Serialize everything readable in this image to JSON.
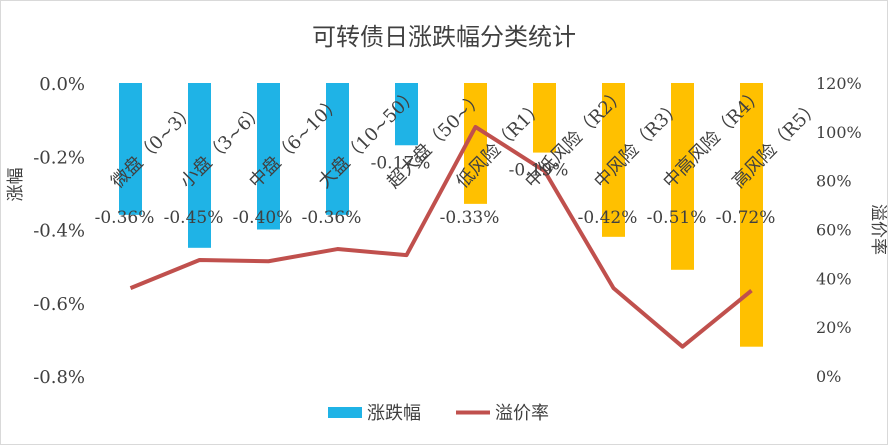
{
  "chart_data": {
    "type": "bar",
    "title": "可转债日涨跌幅分类统计",
    "ylabel": "涨幅",
    "y2label": "溢价率",
    "ylim": [
      -0.8,
      0
    ],
    "y2lim": [
      0,
      120
    ],
    "yticks": [
      "0.0%",
      "-0.2%",
      "-0.4%",
      "-0.6%",
      "-0.8%"
    ],
    "y2ticks": [
      "120%",
      "100%",
      "80%",
      "60%",
      "40%",
      "20%",
      "0%"
    ],
    "categories": [
      "微盘（0~3）",
      "小盘（3~6）",
      "中盘（6~10）",
      "大盘（10~50）",
      "超大盘（50~）",
      "低风险（R1）",
      "中低风险（R2）",
      "中风险（R3）",
      "中高风险（R4）",
      "高风险（R5）"
    ],
    "series": [
      {
        "name": "涨跌幅",
        "type": "bar",
        "axis": "left",
        "values": [
          -0.36,
          -0.45,
          -0.4,
          -0.36,
          -0.17,
          -0.33,
          -0.19,
          -0.42,
          -0.51,
          -0.72
        ],
        "labels": [
          "-0.36%",
          "-0.45%",
          "-0.40%",
          "-0.36%",
          "-0.17%",
          "-0.33%",
          "-0.19%",
          "-0.42%",
          "-0.51%",
          "-0.72%"
        ],
        "colors": [
          "#1fb3e6",
          "#1fb3e6",
          "#1fb3e6",
          "#1fb3e6",
          "#1fb3e6",
          "#ffc000",
          "#ffc000",
          "#ffc000",
          "#ffc000",
          "#ffc000"
        ]
      },
      {
        "name": "溢价率",
        "type": "line",
        "axis": "right",
        "values": [
          36,
          47.5,
          47,
          52,
          49.5,
          102,
          84,
          36,
          12,
          35
        ],
        "color": "#c0504d"
      }
    ],
    "legend": "bottom",
    "grid": false
  }
}
